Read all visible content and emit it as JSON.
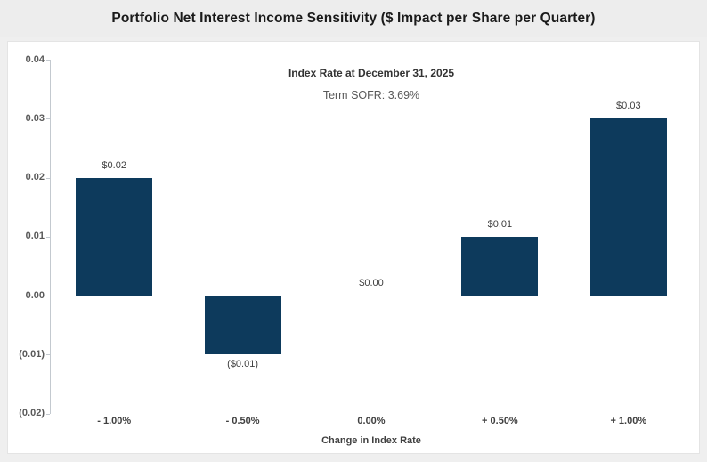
{
  "page": {
    "title": "Portfolio Net Interest Income Sensitivity ($ Impact per Share per Quarter)"
  },
  "annotation": {
    "line1": "Index Rate at December 31, 2025",
    "line2": "Term SOFR: 3.69%"
  },
  "chart_data": {
    "type": "bar",
    "title": "Portfolio Net Interest Income Sensitivity ($ Impact per Share per Quarter)",
    "categories": [
      "- 1.00%",
      "- 0.50%",
      "0.00%",
      "+ 0.50%",
      "+ 1.00%"
    ],
    "values": [
      0.02,
      -0.01,
      0.0,
      0.01,
      0.03
    ],
    "data_labels": [
      "$0.02",
      "($0.01)",
      "$0.00",
      "$0.01",
      "$0.03"
    ],
    "xlabel": "Change in Index Rate",
    "ylabel": "",
    "ylim": [
      -0.02,
      0.04
    ],
    "y_tick_values": [
      0.04,
      0.03,
      0.02,
      0.01,
      0.0,
      -0.01,
      -0.02
    ],
    "y_tick_labels": [
      "0.04",
      "0.03",
      "0.02",
      "0.01",
      "0.00",
      "(0.01)",
      "(0.02)"
    ],
    "annotation": [
      "Index Rate at December 31, 2025",
      "Term SOFR: 3.69%"
    ],
    "grid": "zero-line-only",
    "legend": "none"
  },
  "colors": {
    "bar": "#0d3a5c",
    "page_bg": "#efefef",
    "card_bg": "#ffffff",
    "axis_line": "#c3c9cf",
    "zero_line": "#d9d9d9",
    "tick_label": "#595959",
    "data_label": "#404040",
    "category_label": "#404040",
    "title_text": "#1a1a1a"
  }
}
